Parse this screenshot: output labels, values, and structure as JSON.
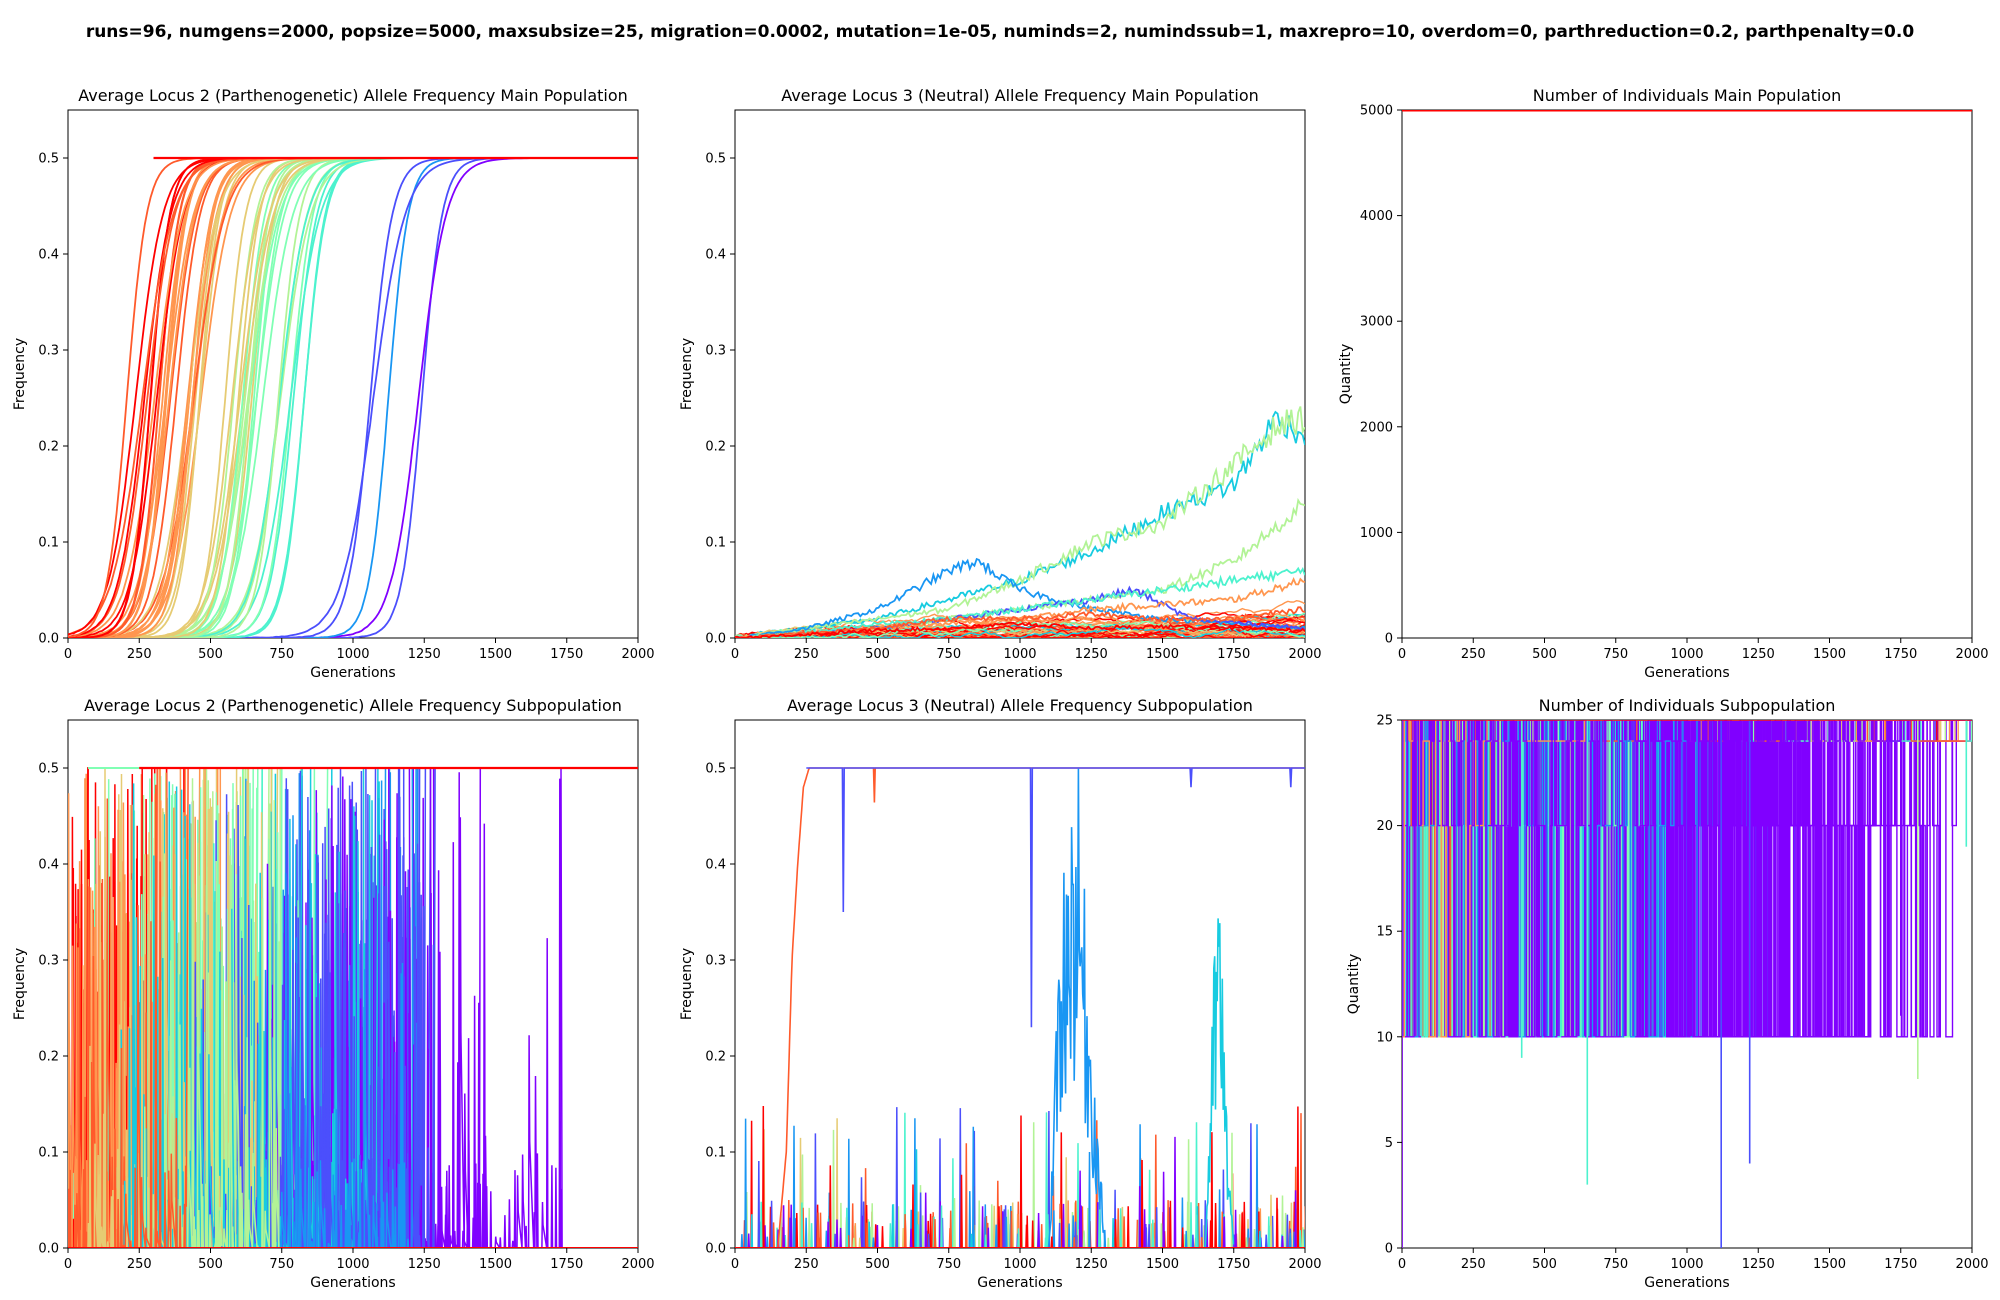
{
  "figure_title": "runs=96, numgens=2000, popsize=5000, maxsubsize=25, migration=0.0002, mutation=1e-05, numinds=2, numindssub=1, maxrepro=10, overdom=0, parthreduction=0.2, parthpenalty=0.0",
  "colors": {
    "palette": [
      "#8000ff",
      "#4b4ffc",
      "#1996f3",
      "#17cbe0",
      "#4cf2ce",
      "#80ffb4",
      "#b2f396",
      "#e6cb73",
      "#ff964f",
      "#ff5a2b",
      "#ff0000"
    ],
    "frame": "#000000",
    "background": "#ffffff"
  },
  "chart_data": [
    {
      "type": "line",
      "title": "Average Locus 2 (Parthenogenetic) Allele Frequency Main Population",
      "xlabel": "Generations",
      "ylabel": "Frequency",
      "xlim": [
        0,
        2000
      ],
      "ylim": [
        0,
        0.55
      ],
      "xticks": [
        0,
        250,
        500,
        750,
        1000,
        1250,
        1500,
        1750,
        2000
      ],
      "yticks": [
        0.0,
        0.1,
        0.2,
        0.3,
        0.4,
        0.5
      ],
      "ytick_labels": [
        "0.0",
        "0.1",
        "0.2",
        "0.3",
        "0.4",
        "0.5"
      ],
      "grid": false,
      "series_kind": "sigmoid_sweeps",
      "runs": 96,
      "max_value": 0.5,
      "sweep_midpoint_range": [
        200,
        1300
      ],
      "representative_series": [
        {
          "color_index": 10,
          "x": [
            0,
            100,
            150,
            200,
            250,
            300,
            2000
          ],
          "y": [
            0,
            0.05,
            0.15,
            0.35,
            0.48,
            0.5,
            0.5
          ]
        },
        {
          "color_index": 4,
          "x": [
            0,
            400,
            600,
            700,
            800,
            900,
            2000
          ],
          "y": [
            0,
            0.02,
            0.12,
            0.3,
            0.45,
            0.5,
            0.5
          ]
        },
        {
          "color_index": 0,
          "x": [
            0,
            1000,
            1150,
            1250,
            1300,
            1350,
            2000
          ],
          "y": [
            0,
            0.0,
            0.1,
            0.3,
            0.45,
            0.5,
            0.5
          ]
        }
      ]
    },
    {
      "type": "line",
      "title": "Average Locus 3 (Neutral) Allele Frequency Main Population",
      "xlabel": "Generations",
      "ylabel": "Frequency",
      "xlim": [
        0,
        2000
      ],
      "ylim": [
        0,
        0.55
      ],
      "xticks": [
        0,
        250,
        500,
        750,
        1000,
        1250,
        1500,
        1750,
        2000
      ],
      "yticks": [
        0.0,
        0.1,
        0.2,
        0.3,
        0.4,
        0.5
      ],
      "ytick_labels": [
        "0.0",
        "0.1",
        "0.2",
        "0.3",
        "0.4",
        "0.5"
      ],
      "grid": false,
      "series_kind": "neutral_drift",
      "runs": 96,
      "series": [
        {
          "color_index": 3,
          "x": [
            0,
            250,
            500,
            750,
            1000,
            1250,
            1500,
            1750,
            1900,
            2000
          ],
          "y": [
            0,
            0.01,
            0.02,
            0.04,
            0.06,
            0.09,
            0.13,
            0.16,
            0.23,
            0.21
          ]
        },
        {
          "color_index": 6,
          "x": [
            0,
            250,
            500,
            750,
            1000,
            1250,
            1500,
            1750,
            1900,
            2000
          ],
          "y": [
            0,
            0.01,
            0.02,
            0.03,
            0.06,
            0.1,
            0.12,
            0.18,
            0.22,
            0.23
          ]
        },
        {
          "color_index": 6,
          "x": [
            0,
            250,
            500,
            750,
            1000,
            1250,
            1500,
            1750,
            2000
          ],
          "y": [
            0,
            0.005,
            0.01,
            0.02,
            0.03,
            0.04,
            0.05,
            0.08,
            0.14
          ]
        },
        {
          "color_index": 2,
          "x": [
            0,
            250,
            500,
            750,
            850,
            1000,
            1250,
            1500,
            2000
          ],
          "y": [
            0,
            0.01,
            0.03,
            0.07,
            0.08,
            0.05,
            0.03,
            0.02,
            0.01
          ]
        },
        {
          "color_index": 1,
          "x": [
            0,
            250,
            500,
            750,
            1000,
            1250,
            1400,
            1600,
            2000
          ],
          "y": [
            0,
            0.005,
            0.01,
            0.02,
            0.03,
            0.04,
            0.05,
            0.02,
            0.01
          ]
        },
        {
          "color_index": 4,
          "x": [
            0,
            250,
            500,
            750,
            1000,
            1250,
            1500,
            1750,
            2000
          ],
          "y": [
            0,
            0.005,
            0.015,
            0.02,
            0.03,
            0.04,
            0.05,
            0.06,
            0.07
          ]
        },
        {
          "color_index": 8,
          "x": [
            0,
            250,
            500,
            750,
            1000,
            1250,
            1500,
            1750,
            2000
          ],
          "y": [
            0,
            0.005,
            0.01,
            0.015,
            0.02,
            0.03,
            0.035,
            0.04,
            0.06
          ]
        },
        {
          "color_index": 9,
          "x": [
            0,
            250,
            500,
            750,
            1000,
            1250,
            1500,
            1750,
            2000
          ],
          "y": [
            0,
            0.005,
            0.01,
            0.02,
            0.02,
            0.025,
            0.02,
            0.02,
            0.03
          ]
        },
        {
          "color_index": 10,
          "x": [
            0,
            250,
            500,
            750,
            1000,
            1250,
            1500,
            1750,
            2000
          ],
          "y": [
            0,
            0.004,
            0.008,
            0.01,
            0.015,
            0.01,
            0.012,
            0.01,
            0.008
          ]
        }
      ]
    },
    {
      "type": "line",
      "title": "Number of Individuals Main Population",
      "xlabel": "Generations",
      "ylabel": "Quantity",
      "xlim": [
        0,
        2000
      ],
      "ylim": [
        0,
        5000
      ],
      "xticks": [
        0,
        250,
        500,
        750,
        1000,
        1250,
        1500,
        1750,
        2000
      ],
      "yticks": [
        0,
        1000,
        2000,
        3000,
        4000,
        5000
      ],
      "ytick_labels": [
        "0",
        "1000",
        "2000",
        "3000",
        "4000",
        "5000"
      ],
      "grid": false,
      "series_kind": "constant",
      "series": [
        {
          "color_index": 10,
          "x": [
            0,
            2000
          ],
          "y": [
            5000,
            5000
          ]
        }
      ]
    },
    {
      "type": "line",
      "title": "Average Locus 2 (Parthenogenetic) Allele Frequency Subpopulation",
      "xlabel": "Generations",
      "ylabel": "Frequency",
      "xlim": [
        0,
        2000
      ],
      "ylim": [
        0,
        0.55
      ],
      "xticks": [
        0,
        250,
        500,
        750,
        1000,
        1250,
        1500,
        1750,
        2000
      ],
      "yticks": [
        0.0,
        0.1,
        0.2,
        0.3,
        0.4,
        0.5
      ],
      "ytick_labels": [
        "0.0",
        "0.1",
        "0.2",
        "0.3",
        "0.4",
        "0.5"
      ],
      "grid": false,
      "series_kind": "noisy_sweeps",
      "runs": 96,
      "max_value": 0.5,
      "fixation_range": [
        70,
        1900
      ]
    },
    {
      "type": "line",
      "title": "Average Locus 3 (Neutral) Allele Frequency Subpopulation",
      "xlabel": "Generations",
      "ylabel": "Frequency",
      "xlim": [
        0,
        2000
      ],
      "ylim": [
        0,
        0.55
      ],
      "xticks": [
        0,
        250,
        500,
        750,
        1000,
        1250,
        1500,
        1750,
        2000
      ],
      "yticks": [
        0.0,
        0.1,
        0.2,
        0.3,
        0.4,
        0.5
      ],
      "ytick_labels": [
        "0.0",
        "0.1",
        "0.2",
        "0.3",
        "0.4",
        "0.5"
      ],
      "grid": false,
      "series_kind": "neutral_spikes",
      "runs": 96,
      "series": [
        {
          "color_index": 9,
          "x": [
            0,
            150,
            180,
            200,
            220,
            240,
            260,
            2000
          ],
          "y": [
            0,
            0.0,
            0.1,
            0.3,
            0.4,
            0.48,
            0.5,
            0.5
          ]
        },
        {
          "color_index": 2,
          "x": [
            1100,
            1150,
            1200,
            1250,
            1300
          ],
          "y": [
            0,
            0.35,
            0.44,
            0.2,
            0
          ]
        },
        {
          "color_index": 3,
          "x": [
            1650,
            1680,
            1700,
            1720,
            1750
          ],
          "y": [
            0,
            0.25,
            0.35,
            0.15,
            0
          ]
        }
      ]
    },
    {
      "type": "line",
      "title": "Number of Individuals Subpopulation",
      "xlabel": "Generations",
      "ylabel": "Quantity",
      "xlim": [
        0,
        2000
      ],
      "ylim": [
        0,
        25
      ],
      "xticks": [
        0,
        250,
        500,
        750,
        1000,
        1250,
        1500,
        1750,
        2000
      ],
      "yticks": [
        0,
        5,
        10,
        15,
        20,
        25
      ],
      "ytick_labels": [
        "0",
        "5",
        "10",
        "15",
        "20",
        "25"
      ],
      "grid": false,
      "series_kind": "step_population",
      "runs": 96,
      "max_value": 25,
      "levels": [
        25,
        24,
        20,
        10,
        0
      ]
    }
  ]
}
